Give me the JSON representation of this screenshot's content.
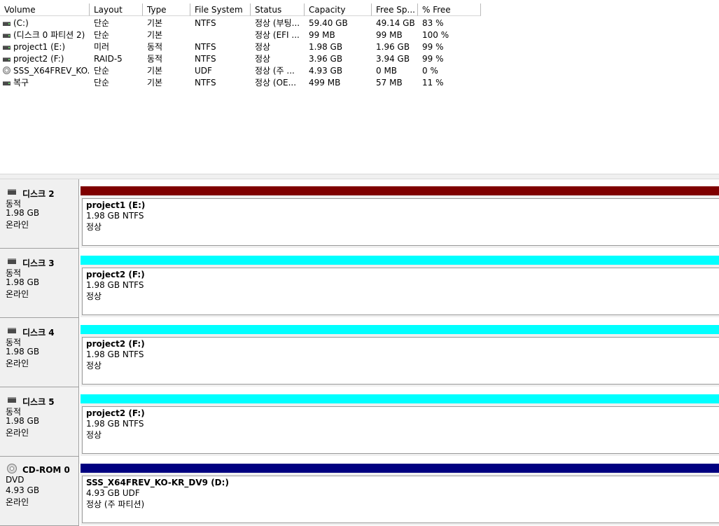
{
  "volume_list": {
    "columns": [
      "Volume",
      "Layout",
      "Type",
      "File System",
      "Status",
      "Capacity",
      "Free Sp...",
      "% Free"
    ],
    "rows": [
      {
        "icon": "drive-icon",
        "volume": " (C:)",
        "layout": "단순",
        "type": "기본",
        "fs": "NTFS",
        "status": "정상 (부팅...",
        "capacity": "59.40 GB",
        "free": "49.14 GB",
        "pct": "83 %"
      },
      {
        "icon": "drive-icon",
        "volume": "(디스크 0 파티션 2)",
        "layout": "단순",
        "type": "기본",
        "fs": "",
        "status": "정상 (EFI ...",
        "capacity": "99 MB",
        "free": "99 MB",
        "pct": "100 %"
      },
      {
        "icon": "drive-icon",
        "volume": "project1 (E:)",
        "layout": "미러",
        "type": "동적",
        "fs": "NTFS",
        "status": "정상",
        "capacity": "1.98 GB",
        "free": "1.96 GB",
        "pct": "99 %"
      },
      {
        "icon": "drive-icon",
        "volume": "project2 (F:)",
        "layout": "RAID-5",
        "type": "동적",
        "fs": "NTFS",
        "status": "정상",
        "capacity": "3.96 GB",
        "free": "3.94 GB",
        "pct": "99 %"
      },
      {
        "icon": "cd-icon",
        "volume": "SSS_X64FREV_KO...",
        "layout": "단순",
        "type": "기본",
        "fs": "UDF",
        "status": "정상 (주 ...",
        "capacity": "4.93 GB",
        "free": "0 MB",
        "pct": "0 %"
      },
      {
        "icon": "drive-icon",
        "volume": "복구",
        "layout": "단순",
        "type": "기본",
        "fs": "NTFS",
        "status": "정상 (OE...",
        "capacity": "499 MB",
        "free": "57 MB",
        "pct": "11 %"
      }
    ]
  },
  "disks": [
    {
      "name": "디스크 2",
      "icon": "disk-icon",
      "kind": "동적",
      "size": "1.98 GB",
      "state": "온라인",
      "partition": {
        "name": "project1  (E:)",
        "size": "1.98 GB NTFS",
        "status": "정상",
        "bar_color": "#7f0000"
      }
    },
    {
      "name": "디스크 3",
      "icon": "disk-icon",
      "kind": "동적",
      "size": "1.98 GB",
      "state": "온라인",
      "partition": {
        "name": "project2  (F:)",
        "size": "1.98 GB NTFS",
        "status": "정상",
        "bar_color": "#00ffff"
      }
    },
    {
      "name": "디스크 4",
      "icon": "disk-icon",
      "kind": "동적",
      "size": "1.98 GB",
      "state": "온라인",
      "partition": {
        "name": "project2  (F:)",
        "size": "1.98 GB NTFS",
        "status": "정상",
        "bar_color": "#00ffff"
      }
    },
    {
      "name": "디스크 5",
      "icon": "disk-icon",
      "kind": "동적",
      "size": "1.98 GB",
      "state": "온라인",
      "partition": {
        "name": "project2  (F:)",
        "size": "1.98 GB NTFS",
        "status": "정상",
        "bar_color": "#00ffff"
      }
    },
    {
      "name": "CD-ROM 0",
      "icon": "cd-icon",
      "kind": "DVD",
      "size": "4.93 GB",
      "state": "온라인",
      "partition": {
        "name": "SSS_X64FREV_KO-KR_DV9  (D:)",
        "size": "4.93 GB UDF",
        "status": "정상 (주 파티션)",
        "bar_color": "#000080"
      }
    }
  ]
}
